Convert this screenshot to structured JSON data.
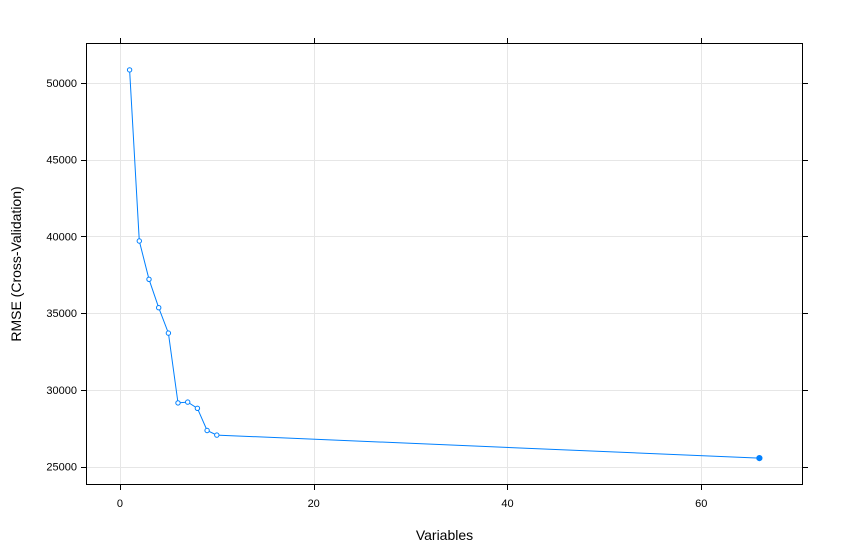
{
  "chart_data": {
    "type": "line",
    "title": "",
    "xlabel": "Variables",
    "ylabel": "RMSE (Cross-Validation)",
    "xlim": [
      -3.5,
      70.5
    ],
    "ylim": [
      23800,
      52600
    ],
    "xticks": [
      0,
      20,
      40,
      60
    ],
    "yticks": [
      25000,
      30000,
      35000,
      40000,
      45000,
      50000
    ],
    "grid": true,
    "legend": "none",
    "colors": {
      "series": "#0080ff",
      "grid": "#e6e6e6",
      "frame": "#000000"
    },
    "series": [
      {
        "x": [
          1,
          2,
          3,
          4,
          5,
          6,
          7,
          8,
          9,
          10,
          66
        ],
        "y": [
          50850,
          39700,
          37200,
          35350,
          33700,
          29150,
          29200,
          28800,
          27350,
          27050,
          25550
        ],
        "selected_index": 10
      }
    ]
  }
}
